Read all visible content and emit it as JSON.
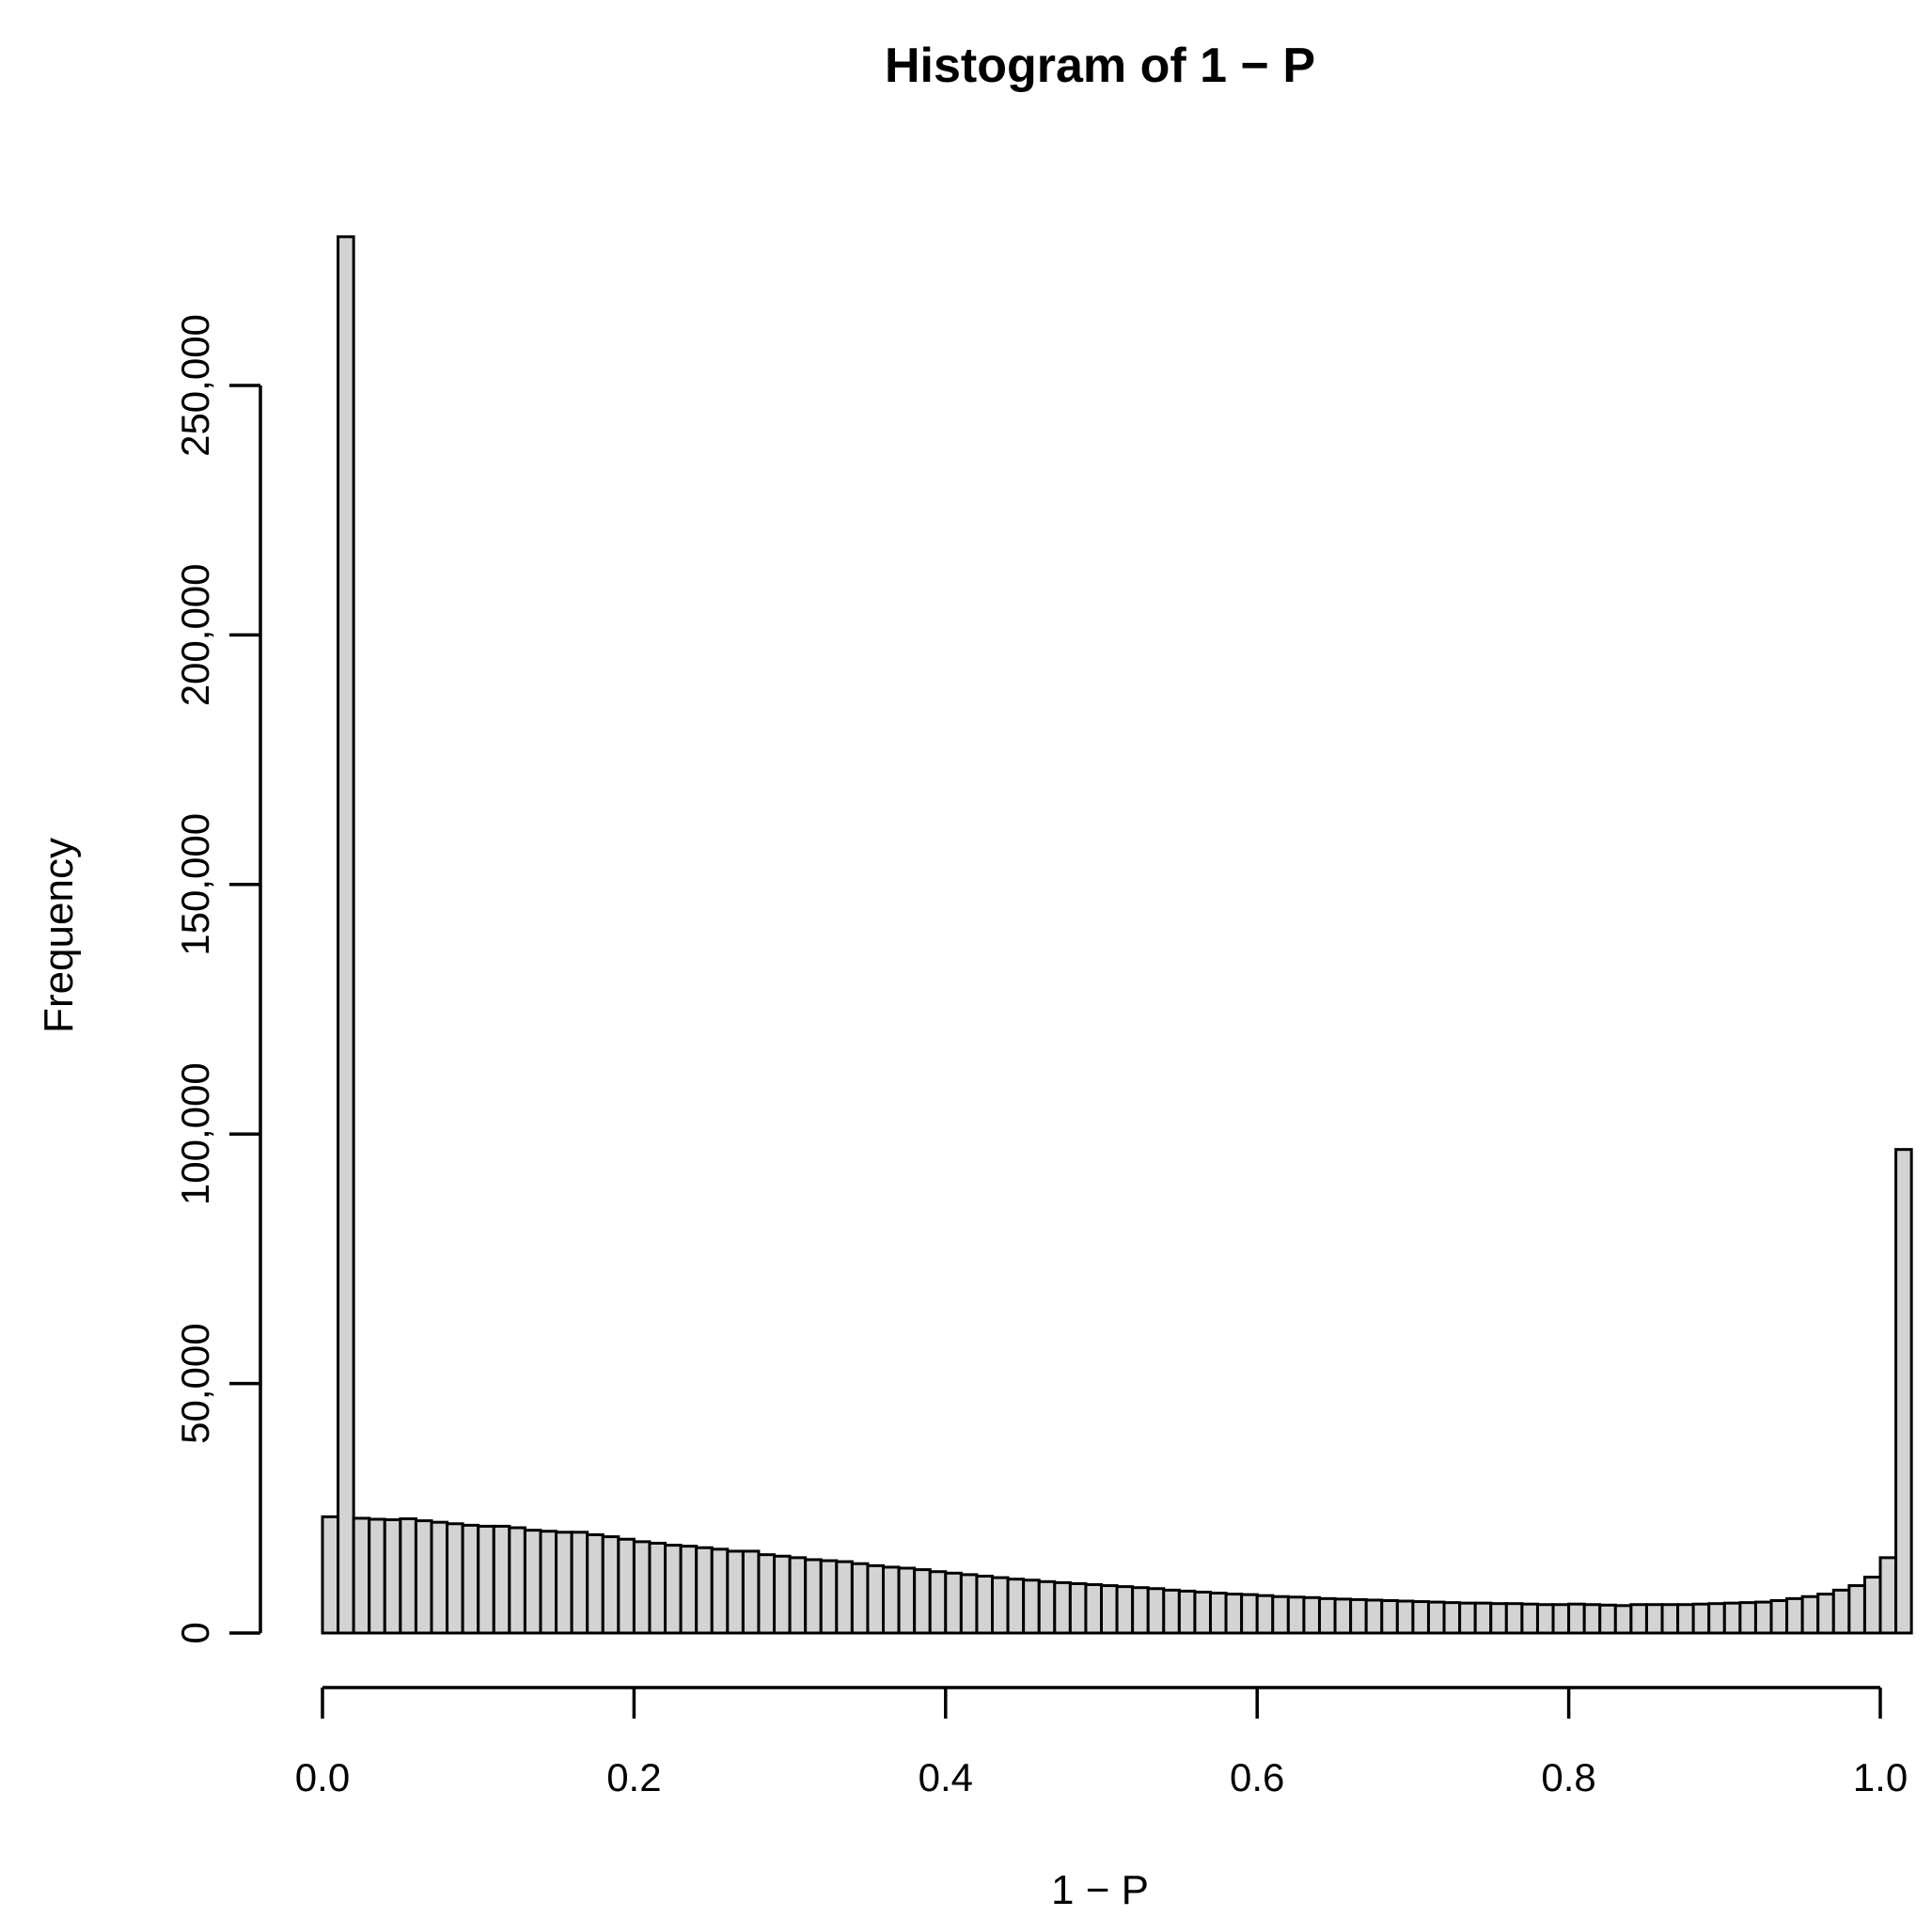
{
  "chart_data": {
    "type": "bar",
    "title": "Histogram of 1 − P",
    "xlabel": "1 − P",
    "ylabel": "Frequency",
    "xlim": [
      0,
      1
    ],
    "ylim": [
      0,
      280000
    ],
    "xticks": [
      0.0,
      0.2,
      0.4,
      0.6,
      0.8,
      1.0
    ],
    "xtick_labels": [
      "0.0",
      "0.2",
      "0.4",
      "0.6",
      "0.8",
      "1.0"
    ],
    "yticks": [
      0,
      50000,
      100000,
      150000,
      200000,
      250000
    ],
    "ytick_labels": [
      "0",
      "50,000",
      "100,000",
      "150,000",
      "200,000",
      "250,000"
    ],
    "bin_width": 0.01,
    "bin_start": 0,
    "values": [
      23300,
      279800,
      23000,
      22800,
      22700,
      22900,
      22500,
      22200,
      21900,
      21600,
      21400,
      21400,
      21100,
      20600,
      20400,
      20200,
      20200,
      19700,
      19300,
      18800,
      18300,
      18000,
      17600,
      17400,
      17100,
      16800,
      16400,
      16400,
      15700,
      15400,
      15100,
      14700,
      14500,
      14300,
      13900,
      13500,
      13200,
      13000,
      12700,
      12300,
      12000,
      11700,
      11400,
      11100,
      10800,
      10600,
      10300,
      10100,
      9900,
      9700,
      9500,
      9300,
      9100,
      8900,
      8600,
      8400,
      8200,
      8000,
      7800,
      7700,
      7500,
      7300,
      7200,
      7100,
      6900,
      6800,
      6700,
      6600,
      6500,
      6400,
      6300,
      6200,
      6100,
      6000,
      6000,
      5900,
      5900,
      5800,
      5700,
      5700,
      5800,
      5700,
      5600,
      5500,
      5700,
      5700,
      5700,
      5700,
      5800,
      5900,
      6000,
      6100,
      6200,
      6500,
      6900,
      7300,
      7800,
      8600,
      9500,
      11200,
      15100,
      96900
    ],
    "bar_color": "#d3d3d3",
    "grid": false,
    "legend": "none"
  }
}
